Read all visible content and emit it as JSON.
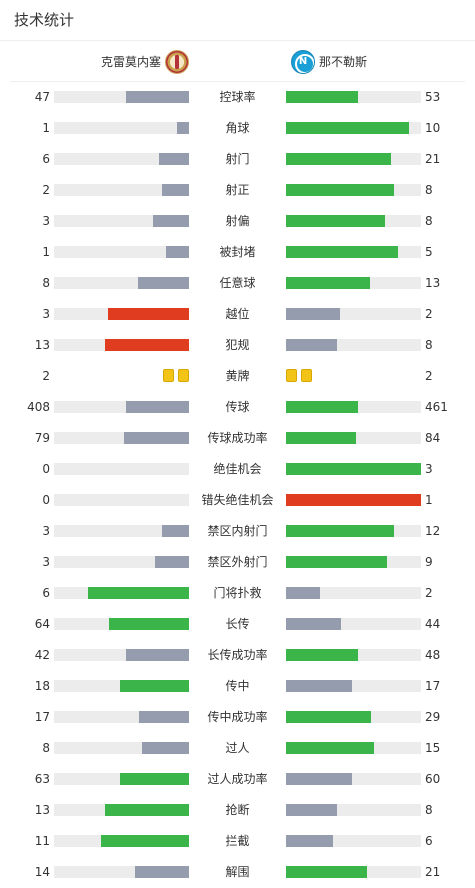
{
  "header": {
    "title": "技术统计"
  },
  "teams": {
    "home": {
      "name": "克雷莫内塞",
      "logo_icon": "cremonese-crest-icon"
    },
    "away": {
      "name": "那不勒斯",
      "logo_icon": "napoli-crest-icon"
    }
  },
  "colors": {
    "green": "#3bb44a",
    "gray": "#949cad",
    "red": "#e03c20",
    "track": "#ececec",
    "yellow_card": "#f2c418"
  },
  "stats": [
    {
      "label": "控球率",
      "home": "47",
      "away": "53",
      "home_ratio": 0.47,
      "away_ratio": 0.53,
      "home_color": "gray",
      "away_color": "green"
    },
    {
      "label": "角球",
      "home": "1",
      "away": "10",
      "home_ratio": 0.09,
      "away_ratio": 0.91,
      "home_color": "gray",
      "away_color": "green"
    },
    {
      "label": "射门",
      "home": "6",
      "away": "21",
      "home_ratio": 0.22,
      "away_ratio": 0.78,
      "home_color": "gray",
      "away_color": "green"
    },
    {
      "label": "射正",
      "home": "2",
      "away": "8",
      "home_ratio": 0.2,
      "away_ratio": 0.8,
      "home_color": "gray",
      "away_color": "green"
    },
    {
      "label": "射偏",
      "home": "3",
      "away": "8",
      "home_ratio": 0.27,
      "away_ratio": 0.73,
      "home_color": "gray",
      "away_color": "green"
    },
    {
      "label": "被封堵",
      "home": "1",
      "away": "5",
      "home_ratio": 0.17,
      "away_ratio": 0.83,
      "home_color": "gray",
      "away_color": "green"
    },
    {
      "label": "任意球",
      "home": "8",
      "away": "13",
      "home_ratio": 0.38,
      "away_ratio": 0.62,
      "home_color": "gray",
      "away_color": "green"
    },
    {
      "label": "越位",
      "home": "3",
      "away": "2",
      "home_ratio": 0.6,
      "away_ratio": 0.4,
      "home_color": "red",
      "away_color": "gray"
    },
    {
      "label": "犯规",
      "home": "13",
      "away": "8",
      "home_ratio": 0.62,
      "away_ratio": 0.38,
      "home_color": "red",
      "away_color": "gray"
    },
    {
      "label": "黄牌",
      "home": "2",
      "away": "2",
      "type": "cards",
      "home_cards": 2,
      "away_cards": 2
    },
    {
      "label": "传球",
      "home": "408",
      "away": "461",
      "home_ratio": 0.47,
      "away_ratio": 0.53,
      "home_color": "gray",
      "away_color": "green"
    },
    {
      "label": "传球成功率",
      "home": "79",
      "away": "84",
      "home_ratio": 0.48,
      "away_ratio": 0.52,
      "home_color": "gray",
      "away_color": "green"
    },
    {
      "label": "绝佳机会",
      "home": "0",
      "away": "3",
      "home_ratio": 0,
      "away_ratio": 1,
      "home_color": "gray",
      "away_color": "green"
    },
    {
      "label": "错失绝佳机会",
      "home": "0",
      "away": "1",
      "home_ratio": 0,
      "away_ratio": 1,
      "home_color": "gray",
      "away_color": "red"
    },
    {
      "label": "禁区内射门",
      "home": "3",
      "away": "12",
      "home_ratio": 0.2,
      "away_ratio": 0.8,
      "home_color": "gray",
      "away_color": "green"
    },
    {
      "label": "禁区外射门",
      "home": "3",
      "away": "9",
      "home_ratio": 0.25,
      "away_ratio": 0.75,
      "home_color": "gray",
      "away_color": "green"
    },
    {
      "label": "门将扑救",
      "home": "6",
      "away": "2",
      "home_ratio": 0.75,
      "away_ratio": 0.25,
      "home_color": "green",
      "away_color": "gray"
    },
    {
      "label": "长传",
      "home": "64",
      "away": "44",
      "home_ratio": 0.59,
      "away_ratio": 0.41,
      "home_color": "green",
      "away_color": "gray"
    },
    {
      "label": "长传成功率",
      "home": "42",
      "away": "48",
      "home_ratio": 0.47,
      "away_ratio": 0.53,
      "home_color": "gray",
      "away_color": "green"
    },
    {
      "label": "传中",
      "home": "18",
      "away": "17",
      "home_ratio": 0.51,
      "away_ratio": 0.49,
      "home_color": "green",
      "away_color": "gray"
    },
    {
      "label": "传中成功率",
      "home": "17",
      "away": "29",
      "home_ratio": 0.37,
      "away_ratio": 0.63,
      "home_color": "gray",
      "away_color": "green"
    },
    {
      "label": "过人",
      "home": "8",
      "away": "15",
      "home_ratio": 0.35,
      "away_ratio": 0.65,
      "home_color": "gray",
      "away_color": "green"
    },
    {
      "label": "过人成功率",
      "home": "63",
      "away": "60",
      "home_ratio": 0.51,
      "away_ratio": 0.49,
      "home_color": "green",
      "away_color": "gray"
    },
    {
      "label": "抢断",
      "home": "13",
      "away": "8",
      "home_ratio": 0.62,
      "away_ratio": 0.38,
      "home_color": "green",
      "away_color": "gray"
    },
    {
      "label": "拦截",
      "home": "11",
      "away": "6",
      "home_ratio": 0.65,
      "away_ratio": 0.35,
      "home_color": "green",
      "away_color": "gray"
    },
    {
      "label": "解围",
      "home": "14",
      "away": "21",
      "home_ratio": 0.4,
      "away_ratio": 0.6,
      "home_color": "gray",
      "away_color": "green"
    }
  ]
}
